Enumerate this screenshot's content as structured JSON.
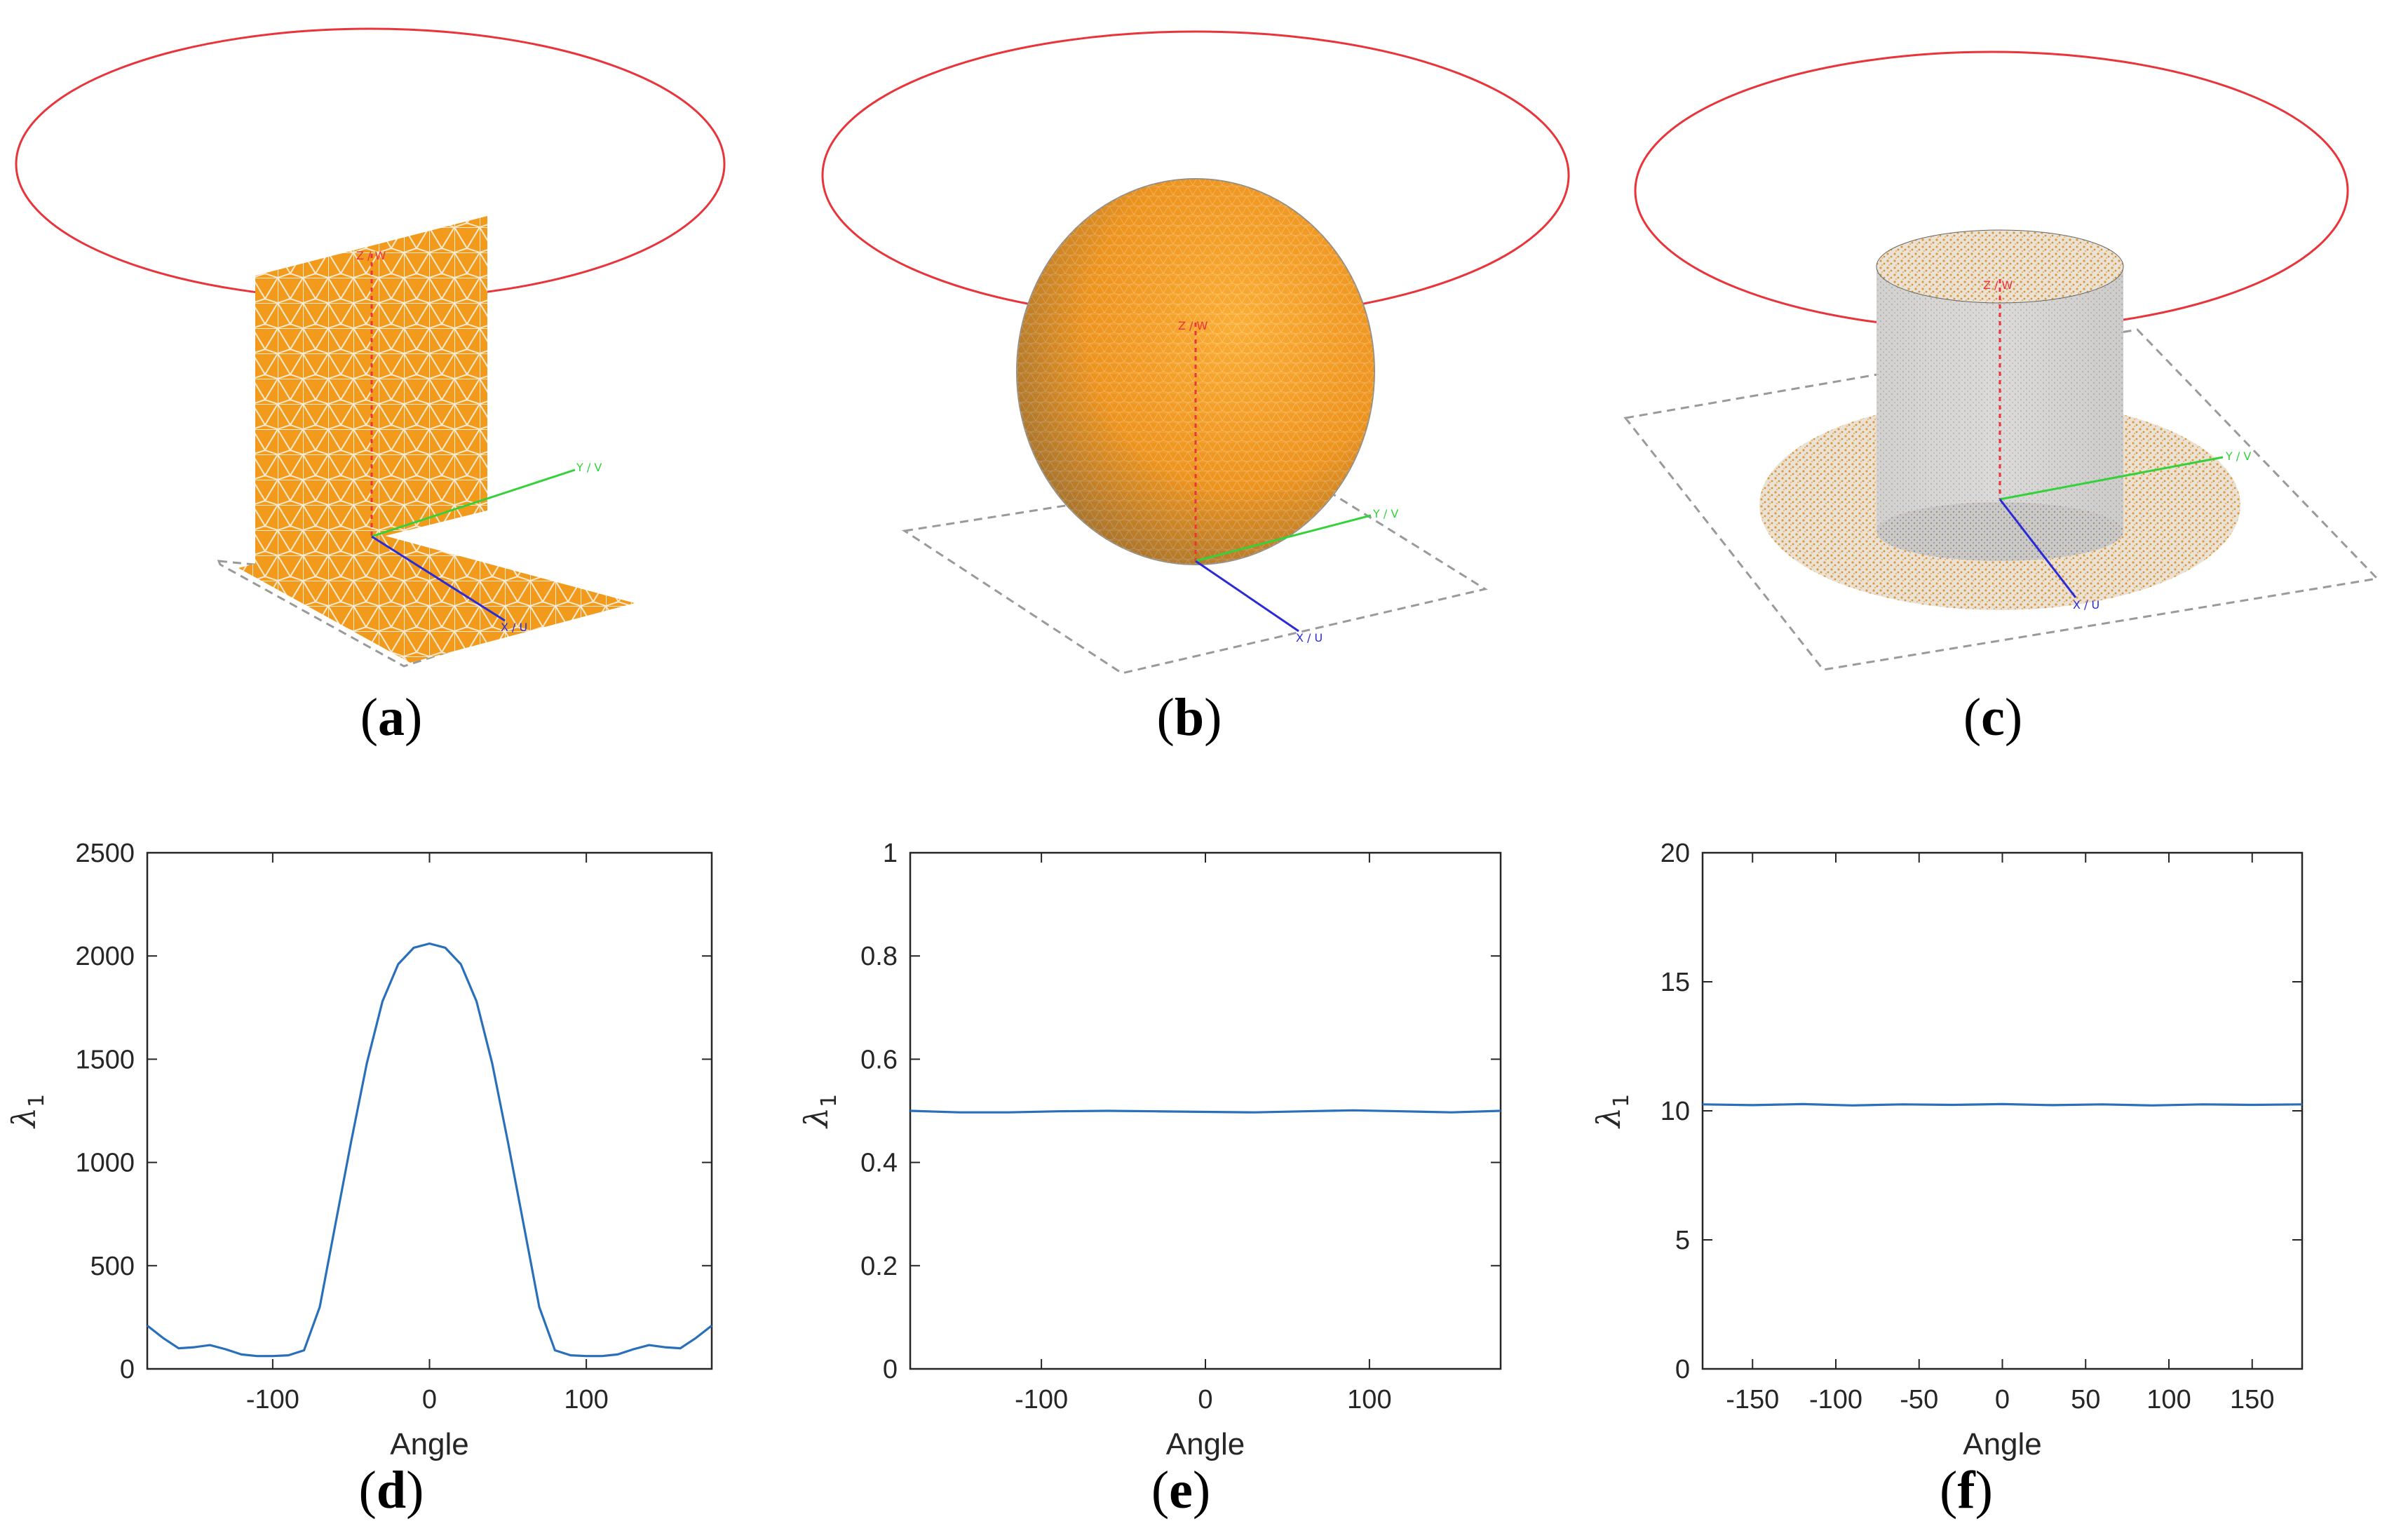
{
  "colors": {
    "ring": "#e8343a",
    "mesh_orange": "#f29a1c",
    "mesh_line": "#fbe9cf",
    "line_series": "#2a6fba",
    "axis_z": "#e8343a",
    "axis_y": "#35d13a",
    "axis_x": "#2b2bd6"
  },
  "panels": {
    "a": {
      "label_open": "(",
      "label_letter": "a",
      "label_close": ")",
      "shape": "plate-on-ground",
      "axis_z": "Z / W",
      "axis_y": "Y / V",
      "axis_x": "X / U"
    },
    "b": {
      "label_open": "(",
      "label_letter": "b",
      "label_close": ")",
      "shape": "sphere",
      "axis_z": "Z / W",
      "axis_y": "Y / V",
      "axis_x": "X / U"
    },
    "c": {
      "label_open": "(",
      "label_letter": "c",
      "label_close": ")",
      "shape": "cylinder-on-disk",
      "axis_z": "Z / W",
      "axis_y": "Y / V",
      "axis_x": "X / U"
    },
    "d": {
      "label_open": "(",
      "label_letter": "d",
      "label_close": ")"
    },
    "e": {
      "label_open": "(",
      "label_letter": "e",
      "label_close": ")"
    },
    "f": {
      "label_open": "(",
      "label_letter": "f",
      "label_close": ")"
    }
  },
  "chart_data": [
    {
      "id": "d",
      "type": "line",
      "title": "",
      "xlabel": "Angle",
      "ylabel": "λ",
      "ylabel_subscript": "1",
      "xlim": [
        -180,
        180
      ],
      "ylim": [
        0,
        2500
      ],
      "xticks": [
        -100,
        0,
        100
      ],
      "yticks": [
        0,
        500,
        1000,
        1500,
        2000,
        2500
      ],
      "grid": false,
      "series": [
        {
          "name": "λ1",
          "x": [
            -180,
            -170,
            -160,
            -150,
            -140,
            -130,
            -120,
            -110,
            -100,
            -90,
            -80,
            -70,
            -60,
            -50,
            -40,
            -30,
            -20,
            -10,
            0,
            10,
            20,
            30,
            40,
            50,
            60,
            70,
            80,
            90,
            100,
            110,
            120,
            130,
            140,
            150,
            160,
            170,
            180
          ],
          "values": [
            210,
            150,
            100,
            105,
            115,
            95,
            70,
            62,
            62,
            66,
            90,
            300,
            700,
            1100,
            1480,
            1780,
            1960,
            2040,
            2060,
            2040,
            1960,
            1780,
            1480,
            1100,
            700,
            300,
            90,
            66,
            62,
            62,
            70,
            95,
            115,
            105,
            100,
            150,
            210
          ]
        }
      ]
    },
    {
      "id": "e",
      "type": "line",
      "title": "",
      "xlabel": "Angle",
      "ylabel": "λ",
      "ylabel_subscript": "1",
      "xlim": [
        -180,
        180
      ],
      "ylim": [
        0,
        1
      ],
      "xticks": [
        -100,
        0,
        100
      ],
      "yticks": [
        0,
        0.2,
        0.4,
        0.6,
        0.8,
        1
      ],
      "grid": false,
      "series": [
        {
          "name": "λ1",
          "x": [
            -180,
            -150,
            -120,
            -90,
            -60,
            -30,
            0,
            30,
            60,
            90,
            120,
            150,
            180
          ],
          "values": [
            0.5,
            0.497,
            0.497,
            0.499,
            0.5,
            0.499,
            0.498,
            0.497,
            0.499,
            0.501,
            0.499,
            0.497,
            0.5
          ]
        }
      ]
    },
    {
      "id": "f",
      "type": "line",
      "title": "",
      "xlabel": "Angle",
      "ylabel": "λ",
      "ylabel_subscript": "1",
      "xlim": [
        -180,
        180
      ],
      "ylim": [
        0,
        20
      ],
      "xticks": [
        -150,
        -100,
        -50,
        0,
        50,
        100,
        150
      ],
      "yticks": [
        0,
        5,
        10,
        15,
        20
      ],
      "grid": false,
      "series": [
        {
          "name": "λ1",
          "x": [
            -180,
            -150,
            -120,
            -90,
            -60,
            -30,
            0,
            30,
            60,
            90,
            120,
            150,
            180
          ],
          "values": [
            10.25,
            10.22,
            10.26,
            10.21,
            10.25,
            10.23,
            10.26,
            10.22,
            10.25,
            10.21,
            10.25,
            10.23,
            10.25
          ]
        }
      ]
    }
  ]
}
